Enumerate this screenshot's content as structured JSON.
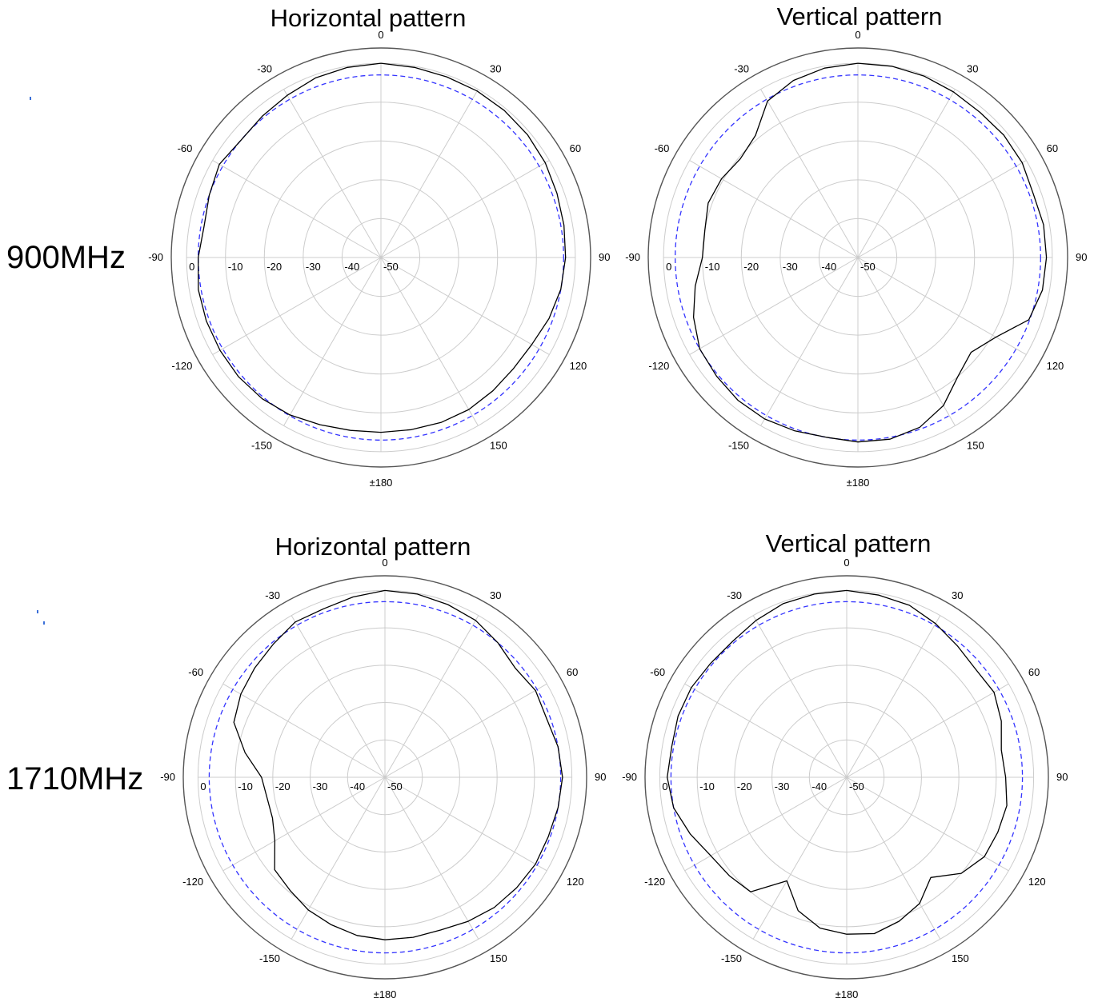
{
  "rows": [
    {
      "label": "900MHz"
    },
    {
      "label": "1710MHz"
    }
  ],
  "colors": {
    "measured": "#000000",
    "reference": "#3333ff",
    "grid": "#cccccc",
    "outer": "#555555"
  },
  "chart_data": [
    {
      "type": "polar",
      "title": "Horizontal pattern",
      "angle_labels": [
        "0",
        "30",
        "60",
        "90",
        "120",
        "150",
        "±180",
        "-150",
        "-120",
        "-90",
        "-60",
        "-30"
      ],
      "radial_labels": [
        "0",
        "-10",
        "-20",
        "-30",
        "-40",
        "-50"
      ],
      "rlim": [
        -50,
        0
      ],
      "reference_level_db": -3,
      "series": [
        {
          "angle_deg": [
            0,
            10,
            20,
            30,
            40,
            50,
            60,
            70,
            80,
            90,
            100,
            110,
            120,
            130,
            140,
            150,
            160,
            170,
            180,
            190,
            200,
            210,
            220,
            230,
            240,
            250,
            260,
            270,
            280,
            290,
            300,
            310,
            320,
            330,
            340,
            350
          ],
          "gain_db": [
            0,
            -0.3,
            -0.5,
            -0.5,
            -0.6,
            -0.8,
            -1.2,
            -1.8,
            -2.2,
            -2.5,
            -3.0,
            -4.0,
            -5.2,
            -5.5,
            -5.2,
            -4.8,
            -4.8,
            -5.0,
            -5.0,
            -4.8,
            -4.2,
            -3.2,
            -2.5,
            -2.2,
            -2.2,
            -2.2,
            -2.3,
            -3.0,
            -3.8,
            -3.0,
            -2.0,
            -3.0,
            -2.5,
            -1.8,
            -0.8,
            -0.3
          ]
        }
      ]
    },
    {
      "type": "polar",
      "title": "Vertical pattern",
      "angle_labels": [
        "0",
        "30",
        "60",
        "90",
        "120",
        "150",
        "±180",
        "-150",
        "-120",
        "-90",
        "-60",
        "-30"
      ],
      "radial_labels": [
        "0",
        "-10",
        "-20",
        "-30",
        "-40",
        "-50"
      ],
      "rlim": [
        -50,
        0
      ],
      "reference_level_db": -3,
      "series": [
        {
          "angle_deg": [
            0,
            10,
            20,
            30,
            40,
            50,
            60,
            70,
            80,
            90,
            100,
            110,
            120,
            130,
            140,
            150,
            160,
            170,
            180,
            190,
            200,
            210,
            220,
            230,
            240,
            250,
            260,
            270,
            280,
            290,
            300,
            310,
            320,
            330,
            340,
            350
          ],
          "gain_db": [
            0,
            0,
            -0.3,
            -0.8,
            -1.2,
            -1.0,
            -1.2,
            -2.0,
            -1.5,
            -1.5,
            -1.8,
            -3.2,
            -9.0,
            -12.0,
            -10.0,
            -6.0,
            -3.5,
            -2.5,
            -2.5,
            -3.0,
            -2.5,
            -2.0,
            -2.0,
            -2.5,
            -3.0,
            -5.0,
            -7.5,
            -10.0,
            -10.0,
            -9.0,
            -9.5,
            -10.5,
            -9.0,
            -3.5,
            -1.5,
            -0.5
          ]
        }
      ]
    },
    {
      "type": "polar",
      "title": "Horizontal pattern",
      "angle_labels": [
        "0",
        "30",
        "60",
        "90",
        "120",
        "150",
        "±180",
        "-150",
        "-120",
        "-90",
        "-60",
        "-30"
      ],
      "radial_labels": [
        "0",
        "-10",
        "-20",
        "-30",
        "-40",
        "-50"
      ],
      "rlim": [
        -50,
        0
      ],
      "reference_level_db": -3,
      "series": [
        {
          "angle_deg": [
            0,
            10,
            20,
            30,
            40,
            50,
            60,
            70,
            80,
            90,
            100,
            110,
            120,
            130,
            140,
            150,
            160,
            170,
            180,
            190,
            200,
            210,
            220,
            230,
            240,
            250,
            260,
            270,
            280,
            290,
            300,
            310,
            320,
            330,
            340,
            350
          ],
          "gain_db": [
            0,
            -0.2,
            -0.8,
            -1.5,
            -3.0,
            -4.5,
            -3.5,
            -4.0,
            -3.0,
            -2.5,
            -3.0,
            -3.5,
            -3.5,
            -4.0,
            -4.5,
            -5.5,
            -6.5,
            -6.5,
            -6.5,
            -7.0,
            -8.0,
            -9.0,
            -10.5,
            -11.5,
            -16.0,
            -18.0,
            -18.0,
            -17.0,
            -12.0,
            -7.0,
            -5.5,
            -4.5,
            -3.5,
            -2.0,
            -2.0,
            -1.0
          ]
        }
      ]
    },
    {
      "type": "polar",
      "title": "Vertical pattern",
      "angle_labels": [
        "0",
        "30",
        "60",
        "90",
        "120",
        "150",
        "±180",
        "-150",
        "-120",
        "-90",
        "-60",
        "-30"
      ],
      "radial_labels": [
        "0",
        "-10",
        "-20",
        "-30",
        "-40",
        "-50"
      ],
      "rlim": [
        -50,
        0
      ],
      "reference_level_db": -3,
      "series": [
        {
          "angle_deg": [
            0,
            10,
            20,
            30,
            40,
            50,
            60,
            70,
            80,
            90,
            100,
            110,
            120,
            130,
            140,
            150,
            160,
            170,
            180,
            190,
            200,
            210,
            220,
            230,
            240,
            250,
            260,
            270,
            280,
            290,
            300,
            310,
            320,
            330,
            340,
            350
          ],
          "gain_db": [
            0,
            -0.5,
            -1.0,
            -2.5,
            -4.0,
            -5.0,
            -4.5,
            -6.0,
            -8.0,
            -7.5,
            -6.5,
            -7.0,
            -7.5,
            -10.0,
            -15.0,
            -11.0,
            -9.0,
            -7.5,
            -8.0,
            -9.0,
            -12.0,
            -18.0,
            -10.0,
            -9.0,
            -8.0,
            -5.5,
            -3.0,
            -2.0,
            -2.5,
            -2.0,
            -2.0,
            -2.5,
            -2.5,
            -1.5,
            -0.5,
            -0.2
          ]
        }
      ]
    }
  ]
}
